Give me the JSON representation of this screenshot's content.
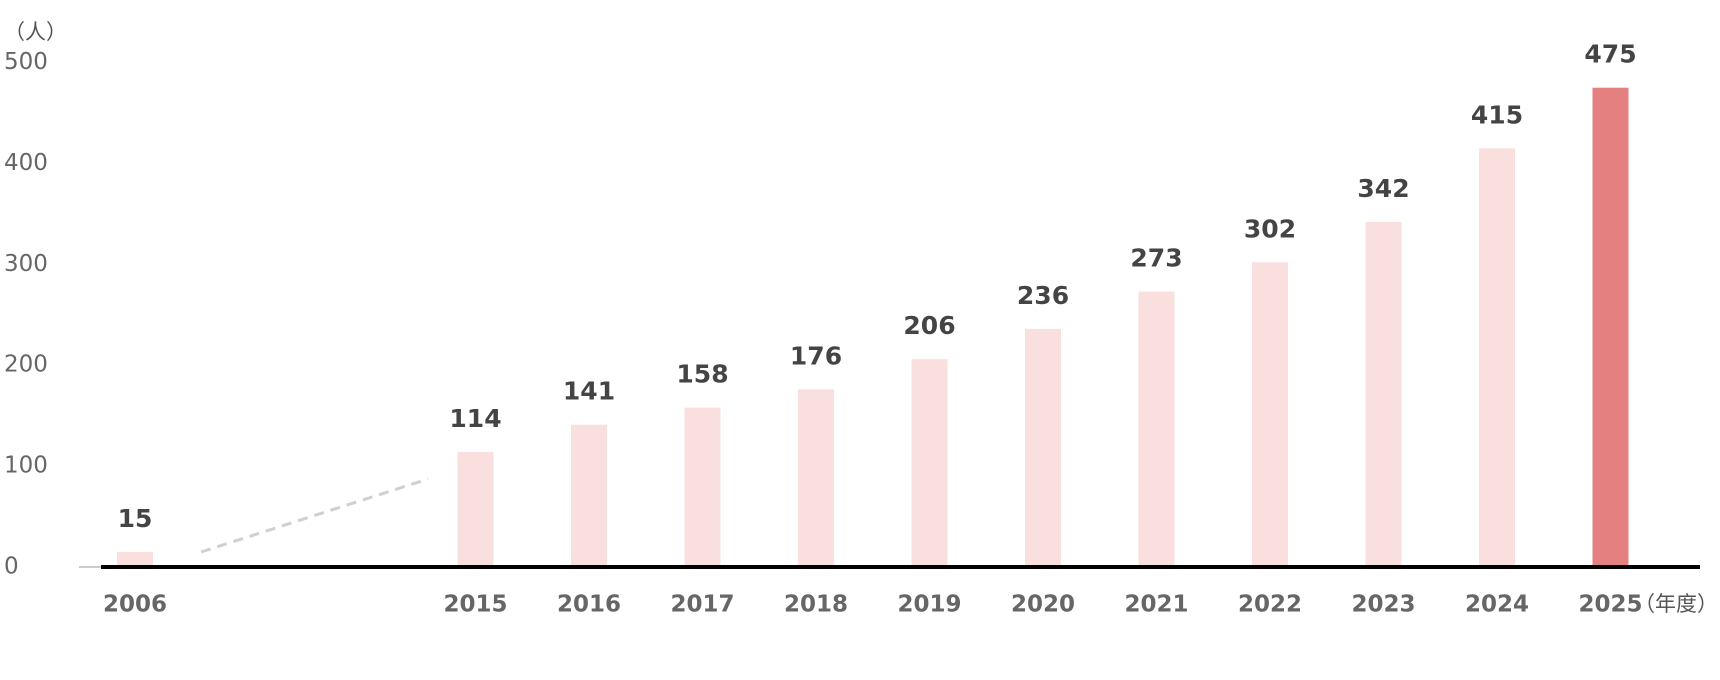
{
  "chart_data": {
    "type": "bar",
    "y_label": "（人）",
    "x_label": "（年度）",
    "categories": [
      "2006",
      null,
      null,
      "2015",
      "2016",
      "2017",
      "2018",
      "2019",
      "2020",
      "2021",
      "2022",
      "2023",
      "2024",
      "2025"
    ],
    "values": [
      15,
      null,
      null,
      114,
      141,
      158,
      176,
      206,
      236,
      273,
      302,
      342,
      415,
      475
    ],
    "colors": [
      "#f9e0df",
      null,
      null,
      "#f9e0df",
      "#f9e0df",
      "#f9e0df",
      "#f9e0df",
      "#f9e0df",
      "#f9e0df",
      "#f9e0df",
      "#f9e0df",
      "#f9e0df",
      "#f9e0df",
      "#e58080"
    ],
    "ylim": [
      0,
      500
    ],
    "yticks": [
      0,
      100,
      200,
      300,
      400,
      500
    ],
    "grid": false
  }
}
